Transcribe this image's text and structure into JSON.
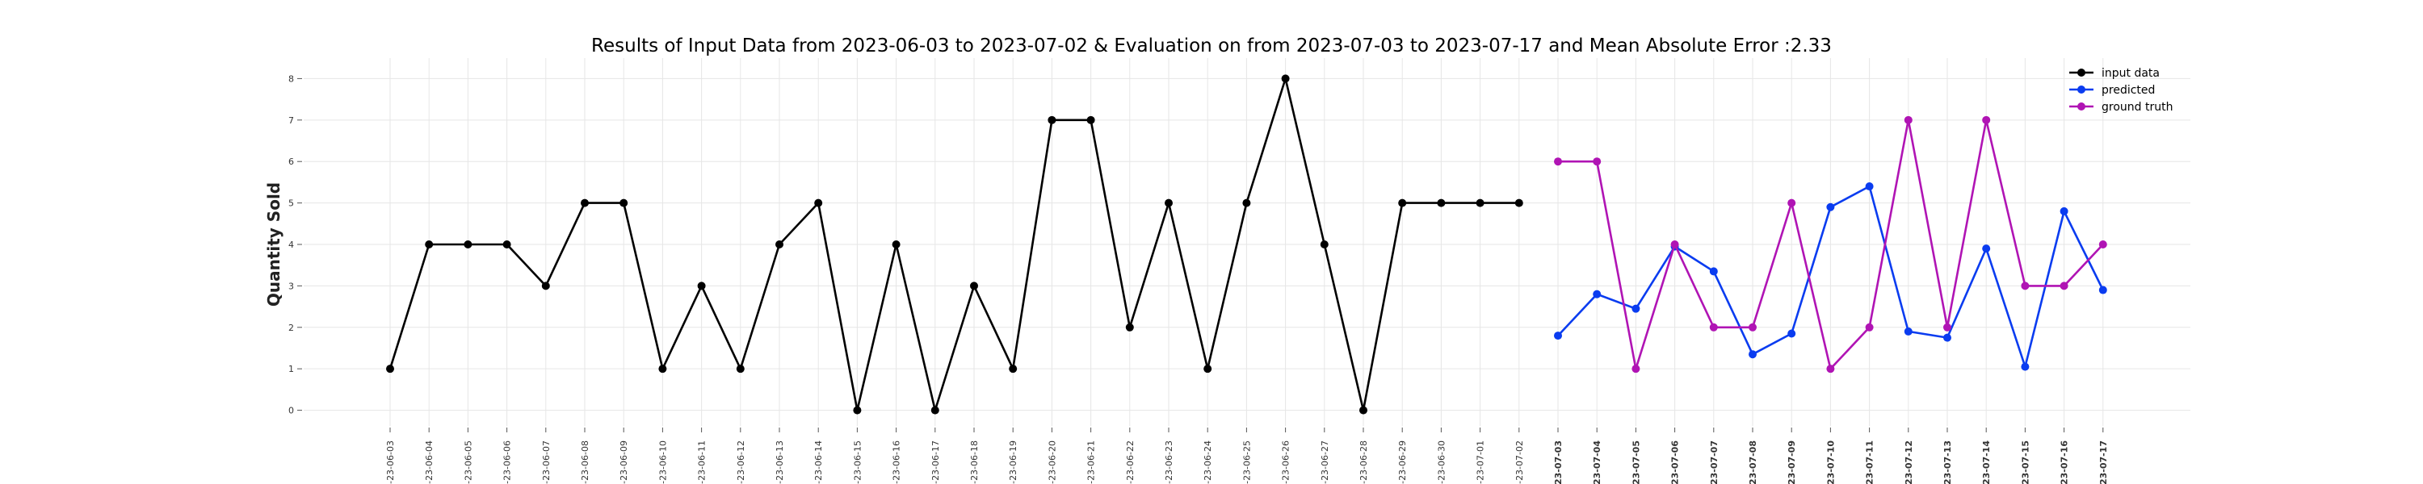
{
  "chart_data": {
    "type": "line",
    "title": "Results of Input Data from 2023-06-03 to 2023-07-02 & Evaluation on from 2023-07-03 to 2023-07-17 and Mean Absolute Error  :2.33",
    "xlabel": "",
    "ylabel": "Quantity Sold",
    "ylim": [
      -0.3,
      8.3
    ],
    "yticks": [
      0,
      1,
      2,
      3,
      4,
      5,
      6,
      7,
      8
    ],
    "grid": true,
    "legend_position": "top-right",
    "x": [
      "2023-06-03",
      "2023-06-04",
      "2023-06-05",
      "2023-06-06",
      "2023-06-07",
      "2023-06-08",
      "2023-06-09",
      "2023-06-10",
      "2023-06-11",
      "2023-06-12",
      "2023-06-13",
      "2023-06-14",
      "2023-06-15",
      "2023-06-16",
      "2023-06-17",
      "2023-06-18",
      "2023-06-19",
      "2023-06-20",
      "2023-06-21",
      "2023-06-22",
      "2023-06-23",
      "2023-06-24",
      "2023-06-25",
      "2023-06-26",
      "2023-06-27",
      "2023-06-28",
      "2023-06-29",
      "2023-06-30",
      "2023-07-01",
      "2023-07-02",
      "2023-07-03",
      "2023-07-04",
      "2023-07-05",
      "2023-07-06",
      "2023-07-07",
      "2023-07-08",
      "2023-07-09",
      "2023-07-10",
      "2023-07-11",
      "2023-07-12",
      "2023-07-13",
      "2023-07-14",
      "2023-07-15",
      "2023-07-16",
      "2023-07-17"
    ],
    "xtick_labels": [
      "-23-06-03",
      "-23-06-04",
      "-23-06-05",
      "-23-06-06",
      "-23-06-07",
      "-23-06-08",
      "-23-06-09",
      "-23-06-10",
      "-23-06-11",
      "-23-06-12",
      "-23-06-13",
      "-23-06-14",
      "-23-06-15",
      "-23-06-16",
      "-23-06-17",
      "-23-06-18",
      "-23-06-19",
      "-23-06-20",
      "-23-06-21",
      "-23-06-22",
      "-23-06-23",
      "-23-06-24",
      "-23-06-25",
      "-23-06-26",
      "-23-06-27",
      "-23-06-28",
      "-23-06-29",
      "-23-06-30",
      "-23-07-01",
      "-23-07-02",
      "-23-07-03",
      "-23-07-04",
      "-23-07-05",
      "-23-07-06",
      "-23-07-07",
      "-23-07-08",
      "-23-07-09",
      "-23-07-10",
      "-23-07-11",
      "-23-07-12",
      "-23-07-13",
      "-23-07-14",
      "-23-07-15",
      "-23-07-16",
      "-23-07-17"
    ],
    "bold_tick_from": "2023-07-03",
    "series": [
      {
        "name": "input data",
        "color": "#000000",
        "x": [
          "2023-06-03",
          "2023-06-04",
          "2023-06-05",
          "2023-06-06",
          "2023-06-07",
          "2023-06-08",
          "2023-06-09",
          "2023-06-10",
          "2023-06-11",
          "2023-06-12",
          "2023-06-13",
          "2023-06-14",
          "2023-06-15",
          "2023-06-16",
          "2023-06-17",
          "2023-06-18",
          "2023-06-19",
          "2023-06-20",
          "2023-06-21",
          "2023-06-22",
          "2023-06-23",
          "2023-06-24",
          "2023-06-25",
          "2023-06-26",
          "2023-06-27",
          "2023-06-28",
          "2023-06-29",
          "2023-06-30",
          "2023-07-01",
          "2023-07-02"
        ],
        "values": [
          1,
          4,
          4,
          4,
          3,
          5,
          5,
          1,
          3,
          1,
          4,
          5,
          0,
          4,
          0,
          3,
          1,
          7,
          7,
          2,
          5,
          1,
          5,
          8,
          4,
          0,
          5,
          5,
          5,
          5
        ]
      },
      {
        "name": "predicted",
        "color": "#0a3cf0",
        "x": [
          "2023-07-03",
          "2023-07-04",
          "2023-07-05",
          "2023-07-06",
          "2023-07-07",
          "2023-07-08",
          "2023-07-09",
          "2023-07-10",
          "2023-07-11",
          "2023-07-12",
          "2023-07-13",
          "2023-07-14",
          "2023-07-15",
          "2023-07-16",
          "2023-07-17"
        ],
        "values": [
          1.8,
          2.8,
          2.45,
          3.95,
          3.35,
          1.35,
          1.85,
          4.9,
          5.4,
          1.9,
          1.75,
          3.9,
          1.05,
          4.8,
          2.9
        ]
      },
      {
        "name": "ground truth",
        "color": "#b014b4",
        "x": [
          "2023-07-03",
          "2023-07-04",
          "2023-07-05",
          "2023-07-06",
          "2023-07-07",
          "2023-07-08",
          "2023-07-09",
          "2023-07-10",
          "2023-07-11",
          "2023-07-12",
          "2023-07-13",
          "2023-07-14",
          "2023-07-15",
          "2023-07-16",
          "2023-07-17"
        ],
        "values": [
          6,
          6,
          1,
          4,
          2,
          2,
          5,
          1,
          2,
          7,
          2,
          7,
          3,
          3,
          4
        ]
      }
    ]
  }
}
